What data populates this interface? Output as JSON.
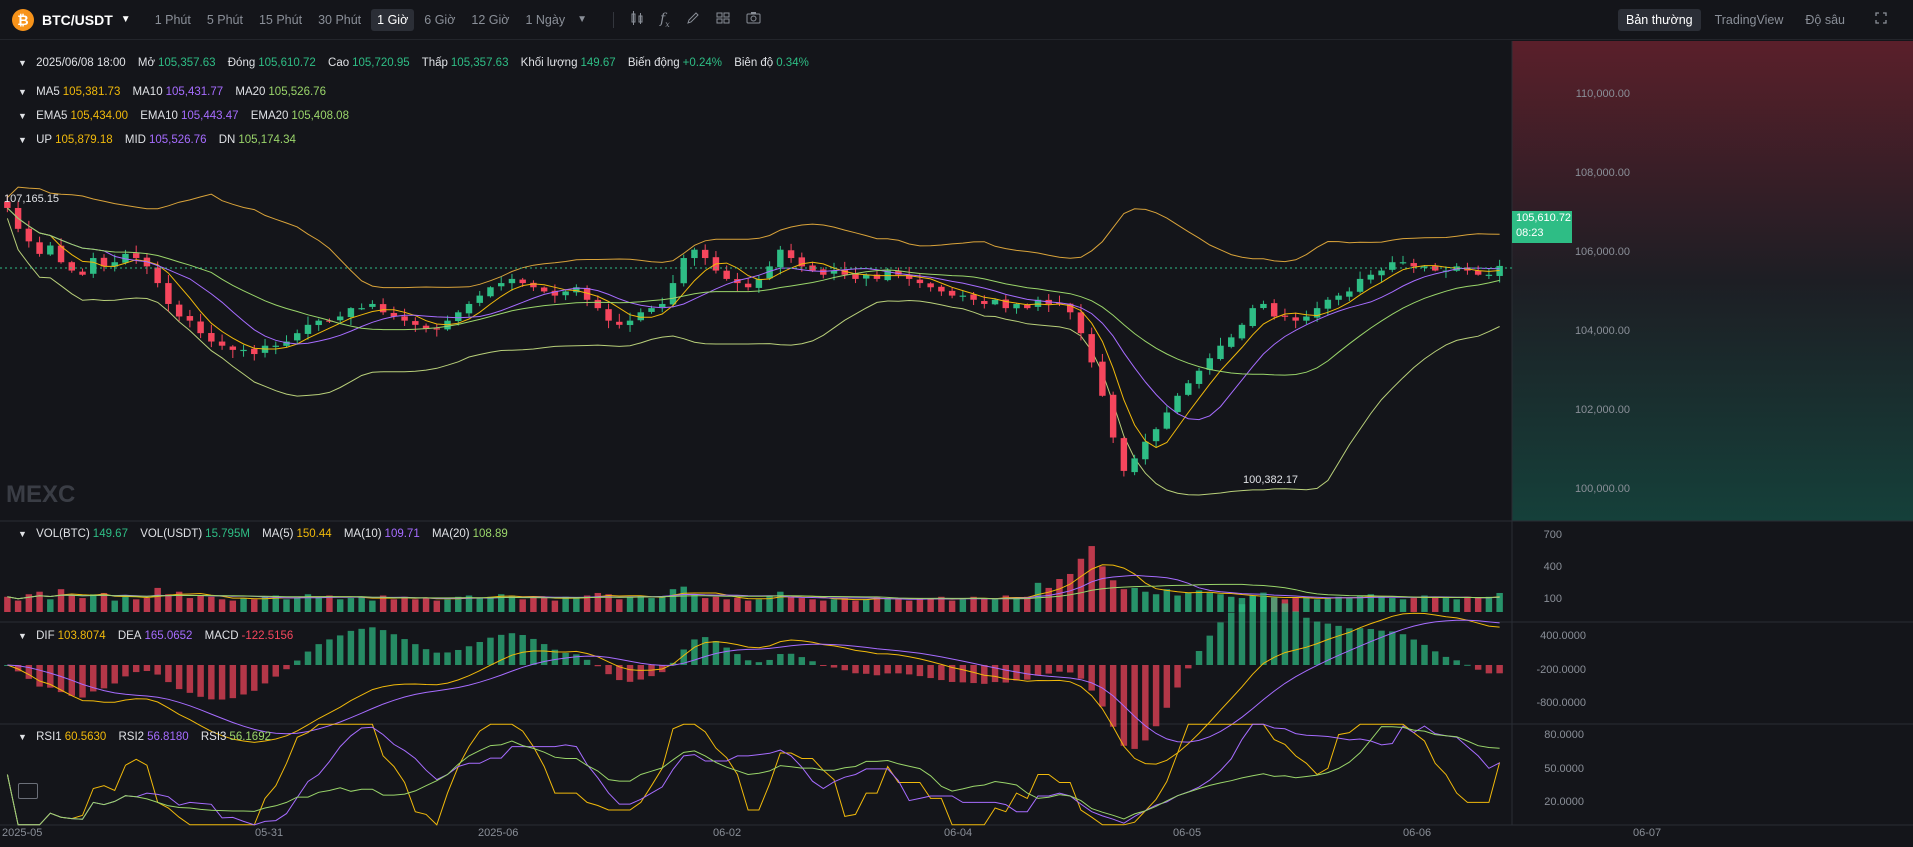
{
  "toolbar": {
    "symbol": "BTC/USDT",
    "coin_glyph": "₿",
    "timeframes": [
      "1 Phút",
      "5 Phút",
      "15 Phút",
      "30 Phút",
      "1 Giờ",
      "6 Giờ",
      "12 Giờ",
      "1 Ngày"
    ],
    "active_timeframe": "1 Giờ",
    "views": [
      "Bản thường",
      "TradingView",
      "Độ sâu"
    ],
    "active_view": "Bản thường"
  },
  "ohlc": {
    "date": "2025/06/08 18:00",
    "open_label": "Mở",
    "open": "105,357.63",
    "close_label": "Đóng",
    "close": "105,610.72",
    "high_label": "Cao",
    "high": "105,720.95",
    "low_label": "Thấp",
    "low": "105,357.63",
    "volume_label": "Khối lượng",
    "volume": "149.67",
    "change_label": "Biến động",
    "change": "+0.24%",
    "amplitude_label": "Biên độ",
    "amplitude": "0.34%"
  },
  "ma": {
    "ma5_label": "MA5",
    "ma5": "105,381.73",
    "ma10_label": "MA10",
    "ma10": "105,431.77",
    "ma20_label": "MA20",
    "ma20": "105,526.76"
  },
  "ema": {
    "ema5_label": "EMA5",
    "ema5": "105,434.00",
    "ema10_label": "EMA10",
    "ema10": "105,443.47",
    "ema20_label": "EMA20",
    "ema20": "105,408.08"
  },
  "boll": {
    "up_label": "UP",
    "up": "105,879.18",
    "mid_label": "MID",
    "mid": "105,526.76",
    "dn_label": "DN",
    "dn": "105,174.34"
  },
  "vol": {
    "btc_label": "VOL(BTC)",
    "btc": "149.67",
    "usdt_label": "VOL(USDT)",
    "usdt": "15.795M",
    "ma5_label": "MA(5)",
    "ma5": "150.44",
    "ma10_label": "MA(10)",
    "ma10": "109.71",
    "ma20_label": "MA(20)",
    "ma20": "108.89"
  },
  "macd": {
    "dif_label": "DIF",
    "dif": "103.8074",
    "dea_label": "DEA",
    "dea": "165.0652",
    "macd_label": "MACD",
    "macd": "-122.5156"
  },
  "rsi": {
    "rsi1_label": "RSI1",
    "rsi1": "60.5630",
    "rsi2_label": "RSI2",
    "rsi2": "56.8180",
    "rsi3_label": "RSI3",
    "rsi3": "56.1692"
  },
  "price_axis": [
    "110,000.00",
    "108,000.00",
    "106,000.00",
    "104,000.00",
    "102,000.00",
    "100,000.00"
  ],
  "vol_axis": [
    "700",
    "400",
    "100"
  ],
  "macd_axis": [
    "400.0000",
    "-200.0000",
    "-800.0000"
  ],
  "rsi_axis": [
    "80.0000",
    "50.0000",
    "20.0000"
  ],
  "current_price": "105,610.72",
  "countdown": "08:23",
  "high_marker": "107,165.15",
  "low_marker": "100,382.17",
  "watermark": "MEXC",
  "x_labels": [
    "2025-05",
    "05-31",
    "2025-06",
    "06-02",
    "06-04",
    "06-05",
    "06-06",
    "06-07"
  ],
  "colors": {
    "up": "#2ebd85",
    "down": "#f6465d",
    "ma5": "#f0b90b",
    "ma10": "#a66cff",
    "ma20": "#9ad56a",
    "bg": "#14151a"
  },
  "chart_data": {
    "type": "candlestick",
    "interval": "1h",
    "closes": [
      107000,
      106500,
      106200,
      105900,
      106100,
      105700,
      105500,
      105400,
      105800,
      105600,
      105700,
      105900,
      105800,
      105600,
      105200,
      104700,
      104400,
      104300,
      104000,
      103800,
      103700,
      103600,
      103600,
      103500,
      103700,
      103700,
      103800,
      104000,
      104200,
      104300,
      104300,
      104400,
      104600,
      104600,
      104700,
      104500,
      104400,
      104300,
      104200,
      104100,
      104100,
      104300,
      104500,
      104700,
      104900,
      105100,
      105200,
      105300,
      105200,
      105100,
      105000,
      104900,
      105000,
      105100,
      104800,
      104600,
      104300,
      104200,
      104300,
      104500,
      104600,
      104700,
      105200,
      105800,
      106000,
      105800,
      105500,
      105300,
      105200,
      105100,
      105300,
      105600,
      106000,
      105800,
      105600,
      105500,
      105400,
      105500,
      105400,
      105300,
      105400,
      105300,
      105500,
      105400,
      105300,
      105200,
      105100,
      105000,
      104900,
      104900,
      104800,
      104700,
      104800,
      104600,
      104700,
      104600,
      104800,
      104700,
      104700,
      104500,
      104000,
      103300,
      102500,
      101500,
      100700,
      101000,
      101400,
      101700,
      102100,
      102500,
      102800,
      103100,
      103400,
      103700,
      103900,
      104200,
      104600,
      104700,
      104400,
      104400,
      104300,
      104400,
      104600,
      104800,
      104900,
      105000,
      105300,
      105400,
      105500,
      105700,
      105700,
      105600,
      105600,
      105500,
      105500,
      105600,
      105500,
      105400,
      105400,
      105611
    ],
    "volumes": [
      120,
      90,
      140,
      160,
      100,
      180,
      130,
      110,
      140,
      150,
      90,
      120,
      100,
      110,
      190,
      140,
      160,
      110,
      130,
      120,
      100,
      90,
      110,
      100,
      120,
      130,
      100,
      110,
      140,
      120,
      130,
      100,
      110,
      120,
      90,
      130,
      100,
      120,
      100,
      110,
      90,
      100,
      120,
      130,
      110,
      120,
      140,
      130,
      100,
      120,
      110,
      90,
      120,
      110,
      130,
      150,
      140,
      100,
      120,
      130,
      110,
      120,
      180,
      200,
      140,
      110,
      120,
      100,
      110,
      90,
      100,
      130,
      160,
      120,
      110,
      100,
      90,
      100,
      110,
      90,
      100,
      120,
      110,
      100,
      90,
      100,
      110,
      120,
      90,
      100,
      120,
      110,
      100,
      130,
      110,
      120,
      230,
      190,
      260,
      300,
      420,
      520,
      360,
      250,
      180,
      190,
      160,
      140,
      180,
      130,
      150,
      170,
      150,
      140,
      120,
      110,
      130,
      120,
      110,
      100,
      110,
      120,
      100,
      110,
      120,
      110,
      130,
      140,
      120,
      110,
      100,
      110,
      130,
      120,
      110,
      100,
      120,
      110,
      120,
      150
    ],
    "price_range": [
      99500,
      111000
    ],
    "x_axis_labels": [
      "2025-05",
      "05-31",
      "2025-06",
      "06-02",
      "06-04",
      "06-05",
      "06-06",
      "06-07"
    ]
  }
}
